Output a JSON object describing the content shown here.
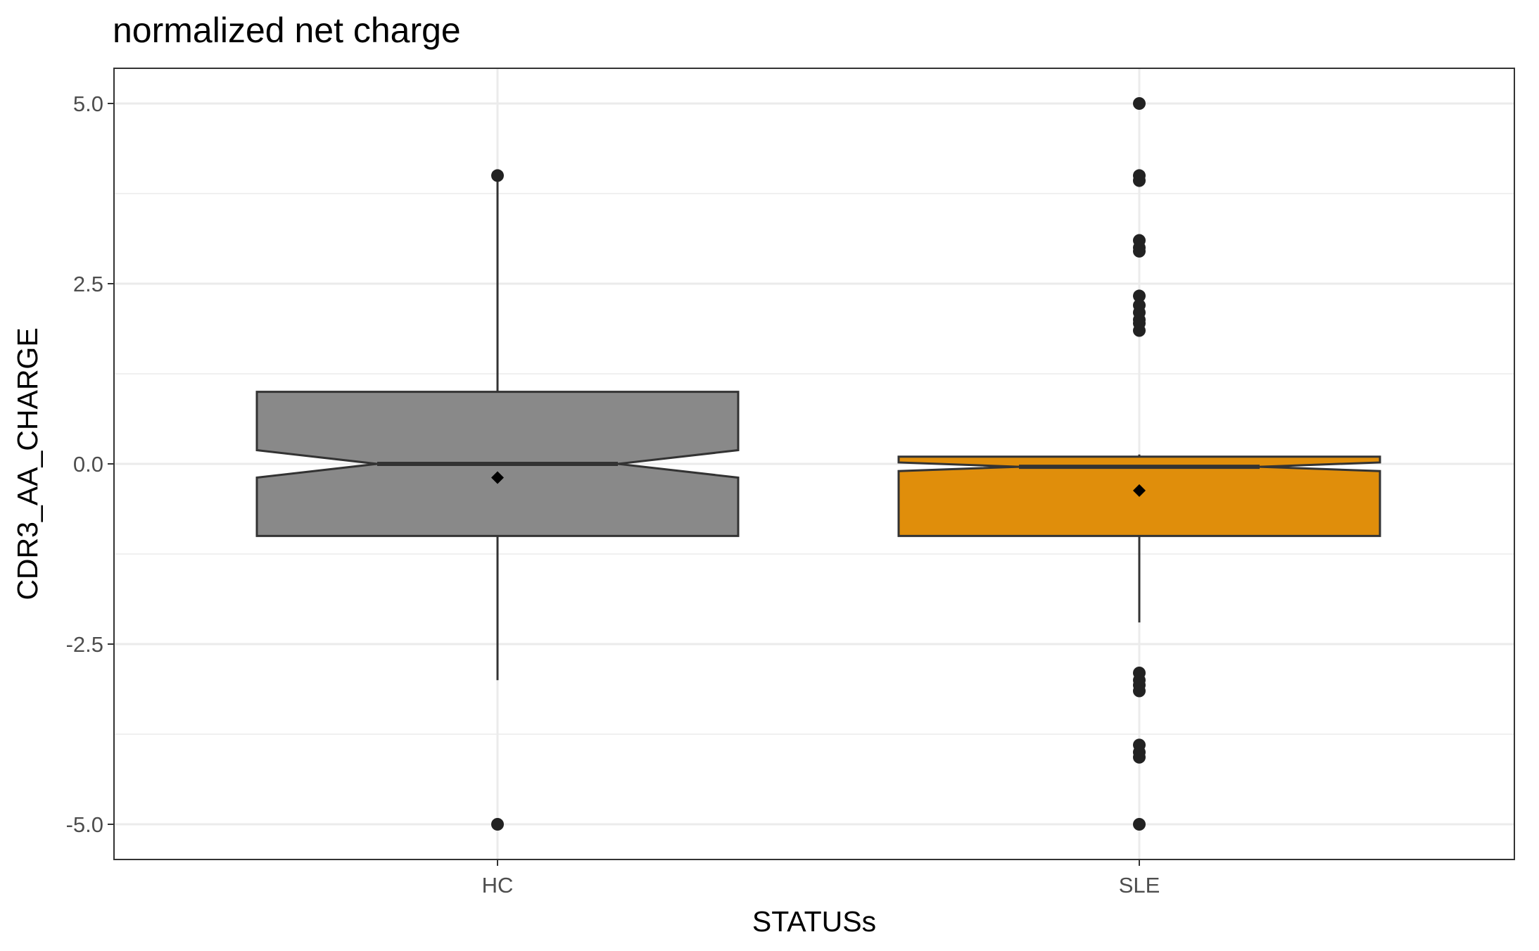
{
  "chart_data": {
    "type": "boxplot",
    "title": "normalized net charge",
    "xlabel": "STATUSs",
    "ylabel": "CDR3_AA_CHARGE",
    "ylim": [
      -5.5,
      5.5
    ],
    "y_ticks": [
      5.0,
      2.5,
      0.0,
      -2.5,
      -5.0
    ],
    "y_tick_labels": [
      "5.0",
      "2.5",
      "0.0",
      "-2.5",
      "-5.0"
    ],
    "y_minor_ticks": [
      3.75,
      1.25,
      -1.25,
      -3.75
    ],
    "grid": true,
    "notched": true,
    "categories": [
      "HC",
      "SLE"
    ],
    "series": [
      {
        "category": "HC",
        "fill": "#898989",
        "q1": -1.0,
        "median": 0.0,
        "q3": 1.0,
        "notch_low": -0.19,
        "notch_high": 0.19,
        "whisker_low": -3.0,
        "whisker_high": 4.0,
        "mean": -0.19,
        "outliers": [
          4.0,
          -5.0
        ]
      },
      {
        "category": "SLE",
        "fill": "#e08e0b",
        "q1": -1.0,
        "median": -0.04,
        "q3": 0.1,
        "notch_low": -0.1,
        "notch_high": 0.02,
        "whisker_low": -2.2,
        "whisker_high": 0.13,
        "mean": -0.37,
        "outliers": [
          5.0,
          4.0,
          3.93,
          3.1,
          3.0,
          2.95,
          2.33,
          2.2,
          2.1,
          2.0,
          1.95,
          1.85,
          -2.9,
          -3.0,
          -3.07,
          -3.15,
          -3.9,
          -4.0,
          -4.07,
          -5.0
        ]
      }
    ],
    "colors": {
      "median_line": "#333333",
      "outline": "#333333",
      "points": "#222222",
      "grid": "#ebebeb",
      "panel_border": "#333333"
    }
  }
}
